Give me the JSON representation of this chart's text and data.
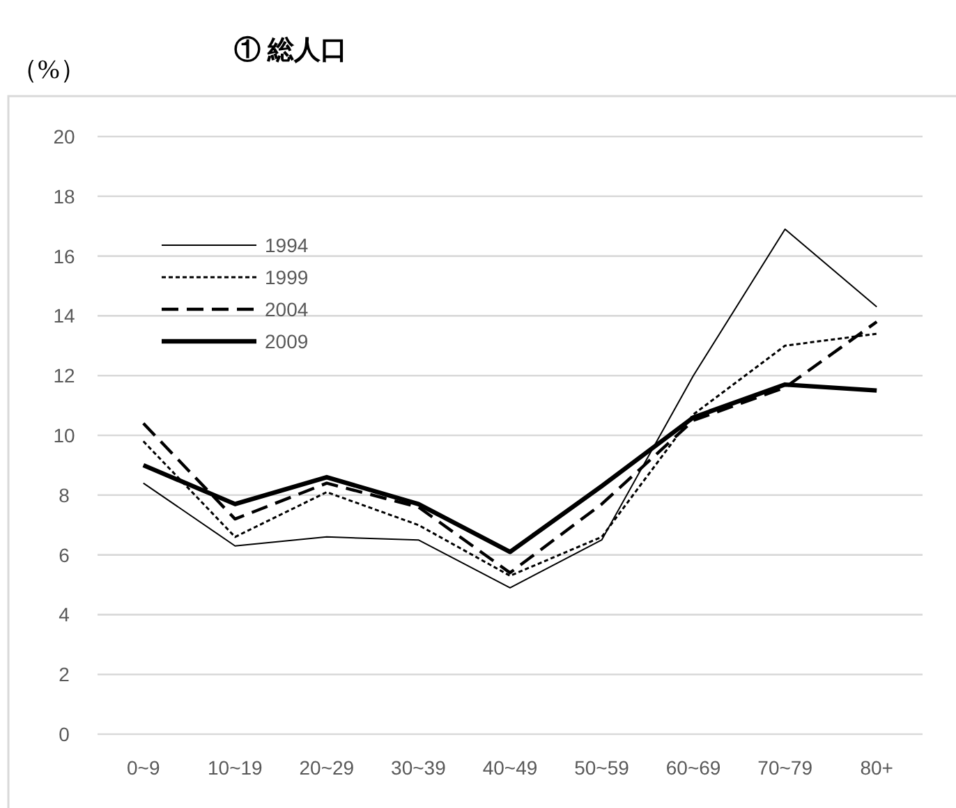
{
  "chart_data": {
    "type": "line",
    "title": "① 総人口",
    "ylabel": "（%）",
    "categories": [
      "0~9",
      "10~19",
      "20~29",
      "30~39",
      "40~49",
      "50~59",
      "60~69",
      "70~79",
      "80+"
    ],
    "series": [
      {
        "name": "1994",
        "color": "#000000",
        "line_style": "solid",
        "values": [
          8.4,
          6.3,
          6.6,
          6.5,
          4.9,
          6.5,
          12.0,
          16.9,
          14.3
        ]
      },
      {
        "name": "1999",
        "color": "#000000",
        "line_style": "dotted",
        "values": [
          9.8,
          6.6,
          8.1,
          7.0,
          5.3,
          6.6,
          10.7,
          13.0,
          13.4
        ]
      },
      {
        "name": "2004",
        "color": "#000000",
        "line_style": "dashed",
        "values": [
          10.4,
          7.2,
          8.4,
          7.6,
          5.4,
          7.7,
          10.5,
          11.6,
          13.8
        ]
      },
      {
        "name": "2009",
        "color": "#000000",
        "line_style": "solid",
        "values": [
          9.0,
          7.7,
          8.6,
          7.7,
          6.1,
          8.3,
          10.6,
          11.7,
          11.5
        ]
      }
    ],
    "ylim": [
      0,
      20
    ],
    "yticks": [
      0,
      2,
      4,
      6,
      8,
      10,
      12,
      14,
      16,
      18,
      20
    ],
    "grid": "y",
    "legend": "top left",
    "marker": "none"
  }
}
